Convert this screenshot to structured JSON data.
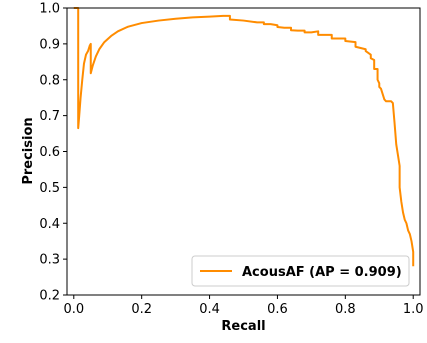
{
  "chart_data": {
    "type": "line",
    "title": "",
    "xlabel": "Recall",
    "ylabel": "Precision",
    "xlim": [
      -0.02,
      1.02
    ],
    "ylim": [
      0.2,
      1.0
    ],
    "xticks": [
      0.0,
      0.2,
      0.4,
      0.6,
      0.8,
      1.0
    ],
    "xtick_labels": [
      "0.0",
      "0.2",
      "0.4",
      "0.6",
      "0.8",
      "1.0"
    ],
    "yticks": [
      0.2,
      0.3,
      0.4,
      0.5,
      0.6,
      0.7,
      0.8,
      0.9,
      1.0
    ],
    "ytick_labels": [
      "0.2",
      "0.3",
      "0.4",
      "0.5",
      "0.6",
      "0.7",
      "0.8",
      "0.9",
      "1.0"
    ],
    "grid": false,
    "legend_position": "lower-right",
    "series": [
      {
        "name": "AcousAF (AP = 0.909)",
        "color": "#ff8c00",
        "x": [
          0.0,
          0.013,
          0.013,
          0.016,
          0.02,
          0.025,
          0.03,
          0.036,
          0.042,
          0.047,
          0.05,
          0.05,
          0.056,
          0.065,
          0.075,
          0.09,
          0.11,
          0.13,
          0.16,
          0.2,
          0.25,
          0.3,
          0.35,
          0.4,
          0.44,
          0.46,
          0.46,
          0.5,
          0.54,
          0.56,
          0.56,
          0.58,
          0.6,
          0.6,
          0.62,
          0.64,
          0.64,
          0.66,
          0.68,
          0.68,
          0.7,
          0.72,
          0.72,
          0.76,
          0.76,
          0.8,
          0.8,
          0.83,
          0.83,
          0.86,
          0.86,
          0.875,
          0.875,
          0.885,
          0.885,
          0.895,
          0.895,
          0.9,
          0.9,
          0.905,
          0.91,
          0.915,
          0.92,
          0.925,
          0.93,
          0.935,
          0.94,
          0.945,
          0.95,
          0.955,
          0.96,
          0.96,
          0.965,
          0.97,
          0.975,
          0.98,
          0.985,
          0.99,
          0.995,
          1.0,
          1.0
        ],
        "y": [
          1.0,
          1.0,
          0.665,
          0.7,
          0.75,
          0.8,
          0.845,
          0.87,
          0.88,
          0.895,
          0.9,
          0.818,
          0.84,
          0.865,
          0.885,
          0.905,
          0.922,
          0.935,
          0.948,
          0.958,
          0.965,
          0.97,
          0.974,
          0.976,
          0.978,
          0.978,
          0.968,
          0.965,
          0.96,
          0.96,
          0.955,
          0.955,
          0.952,
          0.947,
          0.945,
          0.945,
          0.938,
          0.937,
          0.937,
          0.932,
          0.932,
          0.935,
          0.925,
          0.925,
          0.915,
          0.915,
          0.908,
          0.905,
          0.892,
          0.885,
          0.88,
          0.87,
          0.86,
          0.855,
          0.83,
          0.83,
          0.8,
          0.79,
          0.78,
          0.775,
          0.76,
          0.745,
          0.74,
          0.74,
          0.74,
          0.74,
          0.735,
          0.68,
          0.62,
          0.59,
          0.56,
          0.5,
          0.46,
          0.43,
          0.41,
          0.4,
          0.38,
          0.37,
          0.35,
          0.32,
          0.28
        ]
      }
    ]
  }
}
